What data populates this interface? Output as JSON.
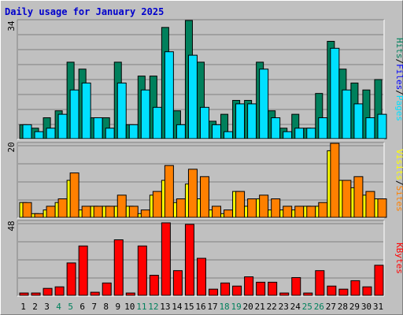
{
  "title": "Daily usage for January 2025",
  "colors": {
    "hits": "#00805c",
    "files": "#00c8f0",
    "pages": "#00e0ff",
    "sites": "#ff8000",
    "visits": "#ffff00",
    "kbytes": "#ff0000",
    "weekend_label": "#00805c",
    "weekday_label": "#000000",
    "title": "#0000cc"
  },
  "axis_labels": {
    "pages": "Pages",
    "files": "Files",
    "hits": "Hits",
    "sites": "Sites",
    "visits": "Visits",
    "kbytes": "KBytes",
    "sep": "/"
  },
  "chart_data": [
    {
      "type": "bar",
      "panel": "hits-files-pages",
      "ymax_label": "34",
      "ylim": [
        0,
        34
      ],
      "categories": [
        "1",
        "2",
        "3",
        "4",
        "5",
        "6",
        "7",
        "8",
        "9",
        "10",
        "11",
        "12",
        "13",
        "14",
        "15",
        "16",
        "17",
        "18",
        "19",
        "20",
        "21",
        "22",
        "23",
        "24",
        "25",
        "26",
        "27",
        "28",
        "29",
        "30",
        "31"
      ],
      "weekend_days": [
        "4",
        "5",
        "11",
        "12",
        "18",
        "19",
        "25",
        "26"
      ],
      "series": [
        {
          "name": "Hits",
          "values": [
            4,
            3,
            6,
            8,
            22,
            20,
            6,
            6,
            22,
            4,
            18,
            18,
            32,
            8,
            34,
            22,
            5,
            7,
            11,
            11,
            22,
            8,
            3,
            7,
            3,
            13,
            28,
            20,
            16,
            14,
            17
          ]
        },
        {
          "name": "Files",
          "values": [
            4,
            2,
            3,
            7,
            14,
            16,
            6,
            3,
            16,
            4,
            14,
            9,
            25,
            4,
            24,
            9,
            4,
            2,
            10,
            10,
            20,
            6,
            2,
            3,
            3,
            6,
            26,
            14,
            10,
            6,
            7
          ]
        },
        {
          "name": "Pages",
          "values": [
            4,
            2,
            3,
            7,
            14,
            16,
            6,
            3,
            16,
            4,
            14,
            9,
            25,
            4,
            24,
            9,
            4,
            2,
            10,
            10,
            20,
            6,
            2,
            3,
            3,
            6,
            26,
            14,
            10,
            6,
            7
          ]
        }
      ]
    },
    {
      "type": "bar",
      "panel": "sites-visits",
      "ymax_label": "20",
      "ylim": [
        0,
        20
      ],
      "categories": [
        "1",
        "2",
        "3",
        "4",
        "5",
        "6",
        "7",
        "8",
        "9",
        "10",
        "11",
        "12",
        "13",
        "14",
        "15",
        "16",
        "17",
        "18",
        "19",
        "20",
        "21",
        "22",
        "23",
        "24",
        "25",
        "26",
        "27",
        "28",
        "29",
        "30",
        "31"
      ],
      "series": [
        {
          "name": "Sites",
          "values": [
            4,
            1,
            3,
            5,
            12,
            3,
            3,
            3,
            6,
            3,
            2,
            7,
            14,
            5,
            13,
            11,
            3,
            2,
            7,
            5,
            6,
            5,
            3,
            3,
            3,
            4,
            20,
            10,
            11,
            7,
            5
          ]
        },
        {
          "name": "Visits",
          "values": [
            4,
            1,
            2,
            4,
            10,
            2,
            3,
            3,
            3,
            3,
            1,
            6,
            10,
            4,
            9,
            5,
            2,
            1,
            7,
            3,
            5,
            2,
            2,
            2,
            3,
            3,
            18,
            10,
            8,
            6,
            5
          ]
        }
      ]
    },
    {
      "type": "bar",
      "panel": "kbytes",
      "ymax_label": "48",
      "ylim": [
        0,
        48
      ],
      "categories": [
        "1",
        "2",
        "3",
        "4",
        "5",
        "6",
        "7",
        "8",
        "9",
        "10",
        "11",
        "12",
        "13",
        "14",
        "15",
        "16",
        "17",
        "18",
        "19",
        "20",
        "21",
        "22",
        "23",
        "24",
        "25",
        "26",
        "27",
        "28",
        "29",
        "30",
        "31"
      ],
      "series": [
        {
          "name": "KBytes",
          "values": [
            1.5,
            1.5,
            4.5,
            5.5,
            21,
            32,
            2,
            8,
            36,
            1.5,
            32,
            13,
            47,
            16,
            46,
            24,
            4,
            8,
            6,
            12,
            8.5,
            8.5,
            1.5,
            11.5,
            1.5,
            16,
            6,
            4,
            9.5,
            5.5,
            19.5
          ]
        }
      ]
    }
  ]
}
